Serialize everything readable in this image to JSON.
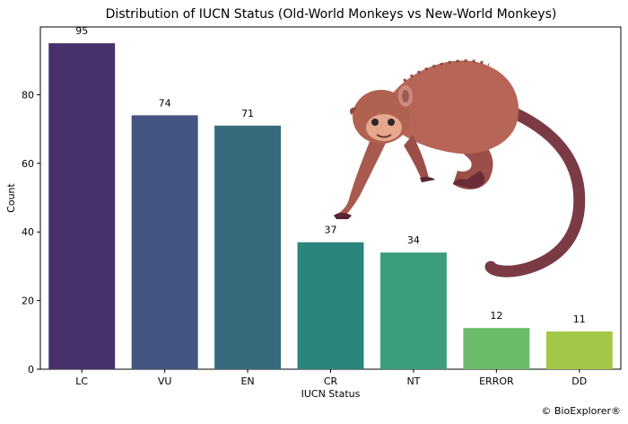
{
  "chart_data": {
    "type": "bar",
    "title": "Distribution of IUCN Status (Old-World Monkeys vs New-World Monkeys)",
    "xlabel": "IUCN Status",
    "ylabel": "Count",
    "categories": [
      "LC",
      "VU",
      "EN",
      "CR",
      "NT",
      "ERROR",
      "DD"
    ],
    "values": [
      95,
      74,
      71,
      37,
      34,
      12,
      11
    ],
    "colors": [
      "#48306c",
      "#435580",
      "#366b7d",
      "#2a867d",
      "#3c9d7c",
      "#6abc6a",
      "#a3c746"
    ],
    "yticks": [
      0,
      20,
      40,
      60,
      80
    ],
    "ylim": [
      0,
      99.75
    ],
    "grid": false,
    "legend": "none",
    "illustration": "monkey"
  },
  "credit": "© BioExplorer®"
}
